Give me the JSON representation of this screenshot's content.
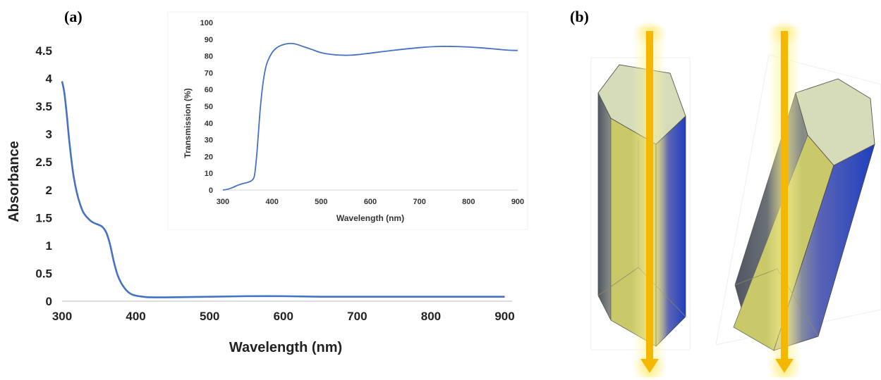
{
  "panels": {
    "a_label": "(a)",
    "b_label": "(b)"
  },
  "chart_data": [
    {
      "type": "line",
      "title": "",
      "xlabel": "Wavelength (nm)",
      "ylabel": "Absorbance",
      "xlim": [
        300,
        910
      ],
      "ylim": [
        0,
        4.5
      ],
      "xticks": [
        300,
        400,
        500,
        600,
        700,
        800,
        900
      ],
      "yticks": [
        "0",
        "0.5",
        "1",
        "1.5",
        "2",
        "2.5",
        "3",
        "3.5",
        "4",
        "4.5"
      ],
      "grid": false,
      "color": "#4472C4",
      "series": [
        {
          "x": [
            300,
            303,
            306,
            310,
            315,
            320,
            325,
            330,
            340,
            350,
            355,
            360,
            365,
            370,
            375,
            380,
            385,
            390,
            395,
            400,
            410,
            420,
            450,
            500,
            550,
            600,
            650,
            700,
            750,
            800,
            850,
            900
          ],
          "values": [
            3.95,
            3.75,
            3.4,
            2.85,
            2.3,
            1.95,
            1.72,
            1.57,
            1.43,
            1.37,
            1.33,
            1.23,
            1.02,
            0.72,
            0.48,
            0.33,
            0.23,
            0.16,
            0.12,
            0.1,
            0.08,
            0.07,
            0.07,
            0.08,
            0.09,
            0.09,
            0.08,
            0.08,
            0.08,
            0.08,
            0.08,
            0.08
          ]
        }
      ]
    },
    {
      "type": "line",
      "title": "",
      "xlabel": "Wavelength (nm)",
      "ylabel": "Transmission (%)",
      "xlim": [
        300,
        900
      ],
      "ylim": [
        0,
        100
      ],
      "xticks": [
        300,
        400,
        500,
        600,
        700,
        800,
        900
      ],
      "yticks": [
        0,
        10,
        20,
        30,
        40,
        50,
        60,
        70,
        80,
        90,
        100
      ],
      "grid": false,
      "color": "#4472C4",
      "series": [
        {
          "x": [
            300,
            310,
            320,
            330,
            340,
            350,
            360,
            365,
            370,
            375,
            380,
            385,
            390,
            400,
            410,
            420,
            430,
            440,
            450,
            460,
            480,
            500,
            520,
            540,
            560,
            580,
            600,
            650,
            700,
            740,
            780,
            820,
            860,
            880,
            900
          ],
          "values": [
            0,
            0.5,
            1.5,
            2.8,
            3.8,
            4.5,
            6,
            10,
            25,
            45,
            60,
            70,
            76,
            82,
            85,
            86.5,
            87.3,
            87.5,
            87,
            86,
            84,
            82,
            81,
            80.5,
            80.5,
            81,
            81.7,
            83.5,
            85,
            85.7,
            85.6,
            85,
            84,
            83.5,
            83.3
          ]
        }
      ]
    }
  ]
}
